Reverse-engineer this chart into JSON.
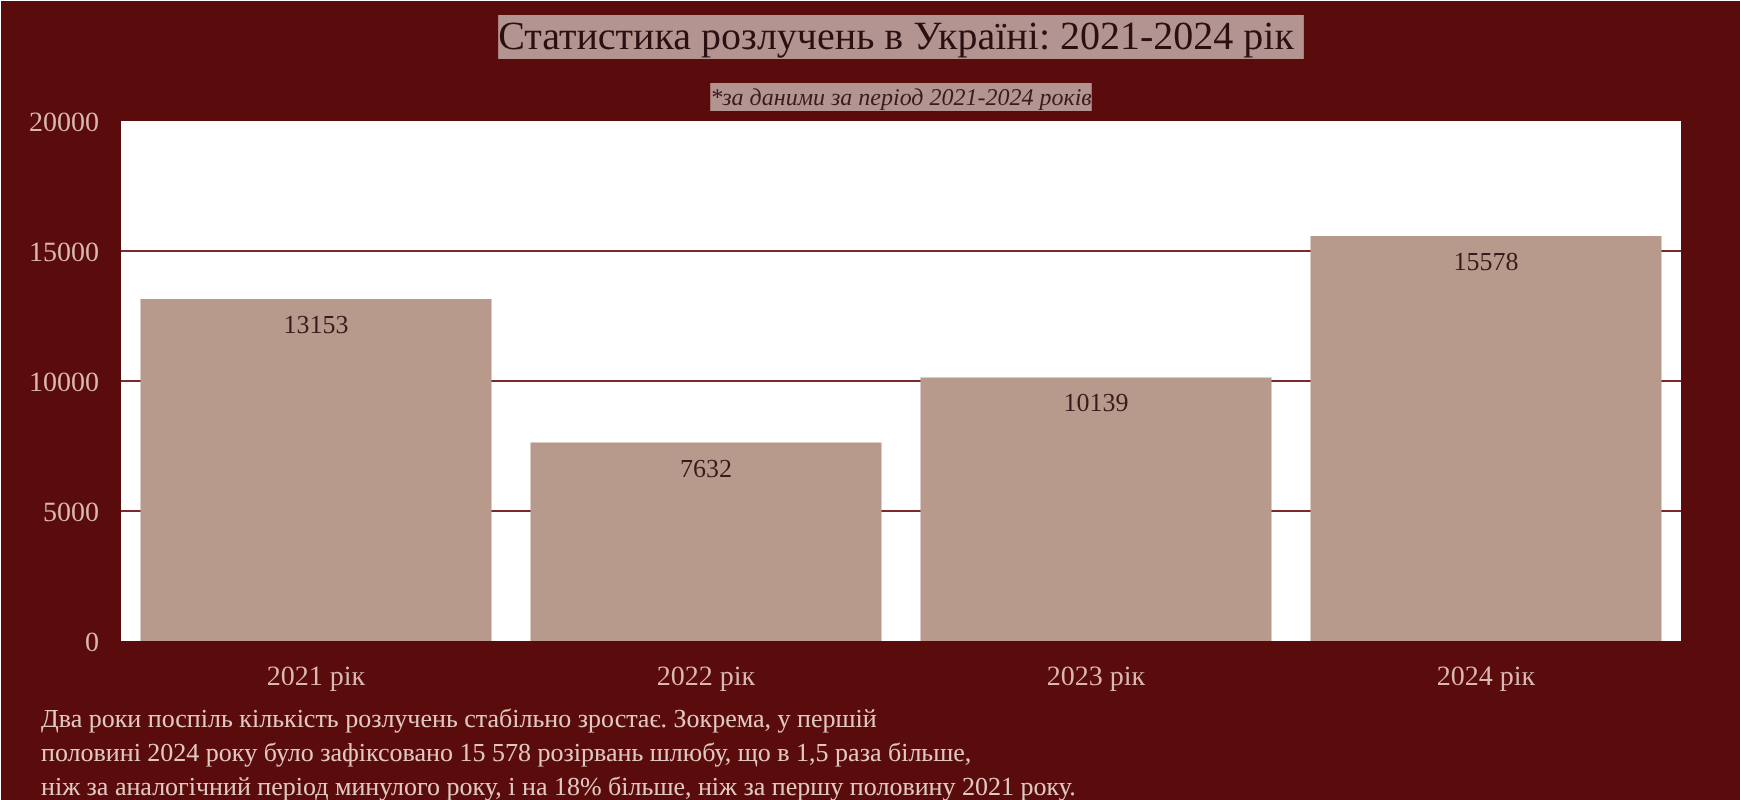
{
  "chart_data": {
    "type": "bar",
    "title": "Статистика розлучень в Україні:  2021-2024 рік",
    "subtitle": "*за даними за період 2021-2024 років",
    "categories": [
      "2021 рік",
      "2022 рік",
      "2023 рік",
      "2024 рік"
    ],
    "values": [
      13153,
      7632,
      10139,
      15578
    ],
    "color": "#b89a8c",
    "ylim": [
      0,
      20000
    ],
    "yticks": [
      0,
      5000,
      10000,
      15000,
      20000
    ],
    "grid": "y",
    "data_labels": true,
    "annotations": [
      "Два роки поспіль кількість розлучень стабільно зростає. Зокрема, у першій",
      "половині 2024 року було зафіксовано 15 578 розірвань шлюбу, що в 1,5 раза більше,",
      "ніж за аналогічний період минулого року, і на 18% більше, ніж за першу половину 2021 року."
    ]
  }
}
